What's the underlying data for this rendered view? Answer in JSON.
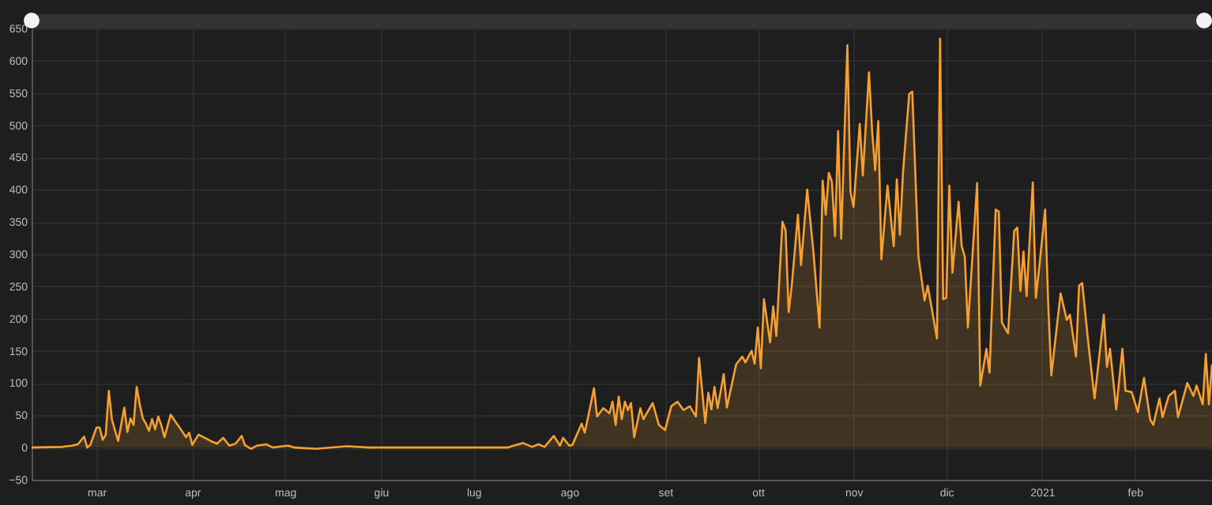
{
  "chart_data": {
    "type": "area",
    "x": [
      "2020-02-24",
      "2020-03-05",
      "2020-03-08",
      "2020-03-10",
      "2020-03-12",
      "2020-03-13",
      "2020-03-14",
      "2020-03-16",
      "2020-03-17",
      "2020-03-18",
      "2020-03-19",
      "2020-03-20",
      "2020-03-21",
      "2020-03-23",
      "2020-03-25",
      "2020-03-26",
      "2020-03-27",
      "2020-03-28",
      "2020-03-29",
      "2020-03-30",
      "2020-03-31",
      "2020-04-01",
      "2020-04-02",
      "2020-04-03",
      "2020-04-04",
      "2020-04-05",
      "2020-04-06",
      "2020-04-07",
      "2020-04-09",
      "2020-04-12",
      "2020-04-14",
      "2020-04-15",
      "2020-04-16",
      "2020-04-18",
      "2020-04-22",
      "2020-04-24",
      "2020-04-26",
      "2020-04-28",
      "2020-04-30",
      "2020-05-02",
      "2020-05-03",
      "2020-05-05",
      "2020-05-07",
      "2020-05-10",
      "2020-05-12",
      "2020-05-17",
      "2020-05-19",
      "2020-05-26",
      "2020-06-05",
      "2020-06-12",
      "2020-07-06",
      "2020-07-27",
      "2020-07-29",
      "2020-08-01",
      "2020-08-04",
      "2020-08-06",
      "2020-08-08",
      "2020-08-11",
      "2020-08-13",
      "2020-08-14",
      "2020-08-16",
      "2020-08-17",
      "2020-08-20",
      "2020-08-21",
      "2020-08-22",
      "2020-08-24",
      "2020-08-25",
      "2020-08-27",
      "2020-08-29",
      "2020-08-30",
      "2020-08-31",
      "2020-09-01",
      "2020-09-02",
      "2020-09-03",
      "2020-09-04",
      "2020-09-05",
      "2020-09-06",
      "2020-09-08",
      "2020-09-09",
      "2020-09-12",
      "2020-09-14",
      "2020-09-16",
      "2020-09-18",
      "2020-09-20",
      "2020-09-22",
      "2020-09-24",
      "2020-09-26",
      "2020-09-27",
      "2020-09-29",
      "2020-09-30",
      "2020-10-01",
      "2020-10-02",
      "2020-10-03",
      "2020-10-05",
      "2020-10-06",
      "2020-10-09",
      "2020-10-11",
      "2020-10-12",
      "2020-10-14",
      "2020-10-15",
      "2020-10-16",
      "2020-10-17",
      "2020-10-18",
      "2020-10-20",
      "2020-10-21",
      "2020-10-22",
      "2020-10-24",
      "2020-10-25",
      "2020-10-26",
      "2020-10-27",
      "2020-10-29",
      "2020-10-30",
      "2020-11-01",
      "2020-11-03",
      "2020-11-05",
      "2020-11-06",
      "2020-11-07",
      "2020-11-08",
      "2020-11-09",
      "2020-11-10",
      "2020-11-11",
      "2020-11-12",
      "2020-11-14",
      "2020-11-15",
      "2020-11-16",
      "2020-11-18",
      "2020-11-19",
      "2020-11-21",
      "2020-11-22",
      "2020-11-23",
      "2020-11-24",
      "2020-11-25",
      "2020-11-27",
      "2020-11-29",
      "2020-11-30",
      "2020-12-01",
      "2020-12-02",
      "2020-12-04",
      "2020-12-05",
      "2020-12-07",
      "2020-12-09",
      "2020-12-10",
      "2020-12-13",
      "2020-12-14",
      "2020-12-15",
      "2020-12-16",
      "2020-12-17",
      "2020-12-18",
      "2020-12-20",
      "2020-12-21",
      "2020-12-22",
      "2020-12-23",
      "2020-12-26",
      "2020-12-27",
      "2020-12-29",
      "2020-12-30",
      "2021-01-01",
      "2021-01-02",
      "2021-01-03",
      "2021-01-05",
      "2021-01-07",
      "2021-01-08",
      "2021-01-09",
      "2021-01-10",
      "2021-01-11",
      "2021-01-13",
      "2021-01-14",
      "2021-01-15",
      "2021-01-17",
      "2021-01-18",
      "2021-01-19",
      "2021-01-22",
      "2021-01-24",
      "2021-01-25",
      "2021-01-27",
      "2021-01-28",
      "2021-01-29",
      "2021-01-31",
      "2021-02-02",
      "2021-02-05",
      "2021-02-06",
      "2021-02-07",
      "2021-02-09",
      "2021-02-11",
      "2021-02-12",
      "2021-02-14",
      "2021-02-16",
      "2021-02-18",
      "2021-02-20",
      "2021-02-21",
      "2021-02-23",
      "2021-02-24",
      "2021-02-26",
      "2021-02-28",
      "2021-03-01",
      "2021-03-04",
      "2021-03-06",
      "2021-03-07",
      "2021-03-09",
      "2021-03-10",
      "2021-03-11",
      "2021-03-12"
    ],
    "series": [
      {
        "color": "#f5a030",
        "values": [
          0,
          1,
          3,
          5,
          17,
          0,
          4,
          31,
          31,
          12,
          20,
          88,
          43,
          10,
          62,
          24,
          45,
          35,
          94,
          67,
          45,
          37,
          26,
          44,
          28,
          48,
          34,
          16,
          51,
          30,
          16,
          23,
          4,
          20,
          10,
          6,
          15,
          3,
          6,
          18,
          4,
          -2,
          3,
          5,
          0,
          3,
          0,
          -2,
          2,
          0,
          0,
          0,
          3,
          7,
          1,
          5,
          1,
          18,
          3,
          15,
          3,
          4,
          37,
          23,
          45,
          92,
          48,
          61,
          53,
          71,
          35,
          79,
          44,
          71,
          58,
          69,
          16,
          61,
          44,
          69,
          35,
          27,
          64,
          71,
          58,
          64,
          48,
          139,
          38,
          85,
          59,
          94,
          61,
          114,
          62,
          129,
          141,
          132,
          150,
          130,
          186,
          123,
          230,
          163,
          219,
          173,
          350,
          337,
          210,
          251,
          361,
          283,
          400,
          304,
          186,
          414,
          361,
          426,
          412,
          328,
          491,
          324,
          624,
          397,
          373,
          502,
          422,
          582,
          491,
          430,
          506,
          292,
          406,
          312,
          416,
          330,
          426,
          548,
          552,
          296,
          228,
          251,
          169,
          634,
          230,
          232,
          406,
          271,
          381,
          312,
          296,
          186,
          410,
          96,
          153,
          116,
          369,
          366,
          194,
          177,
          336,
          341,
          243,
          304,
          235,
          411,
          232,
          275,
          369,
          222,
          112,
          239,
          198,
          206,
          141,
          251,
          255,
          161,
          76,
          206,
          125,
          153,
          59,
          153,
          88,
          86,
          55,
          108,
          43,
          35,
          76,
          47,
          80,
          88,
          47,
          100,
          80,
          96,
          67,
          145,
          67,
          129
        ]
      }
    ],
    "xlim": [
      "2020-02-24",
      "2021-03-12"
    ],
    "xticks": [
      {
        "value": "2020-03-16",
        "label": "mar"
      },
      {
        "value": "2020-04-16",
        "label": "apr"
      },
      {
        "value": "2020-05-16",
        "label": "mag"
      },
      {
        "value": "2020-06-16",
        "label": "giu"
      },
      {
        "value": "2020-07-16",
        "label": "lug"
      },
      {
        "value": "2020-08-16",
        "label": "ago"
      },
      {
        "value": "2020-09-16",
        "label": "set"
      },
      {
        "value": "2020-10-16",
        "label": "ott"
      },
      {
        "value": "2020-11-16",
        "label": "nov"
      },
      {
        "value": "2020-12-16",
        "label": "dic"
      },
      {
        "value": "2021-01-16",
        "label": "2021"
      },
      {
        "value": "2021-02-15",
        "label": "feb"
      }
    ],
    "ylim": [
      -50,
      650
    ],
    "yticks": [
      -50,
      0,
      50,
      100,
      150,
      200,
      250,
      300,
      350,
      400,
      450,
      500,
      550,
      600,
      650
    ],
    "grid": true
  }
}
